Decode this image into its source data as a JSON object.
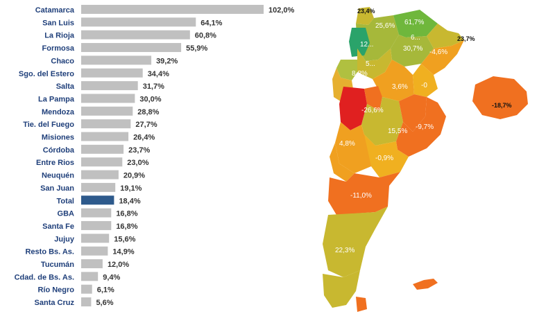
{
  "chart_data": [
    {
      "type": "bar",
      "orientation": "horizontal",
      "categories": [
        "Catamarca",
        "San Luis",
        "La Rioja",
        "Formosa",
        "Chaco",
        "Sgo. del Estero",
        "Salta",
        "La Pampa",
        "Mendoza",
        "Tie. del Fuego",
        "Misiones",
        "Córdoba",
        "Entre Rios",
        "Neuquén",
        "San Juan",
        "Total",
        "GBA",
        "Santa Fe",
        "Jujuy",
        "Resto Bs. As.",
        "Tucumán",
        "Cdad. de Bs. As.",
        "Río Negro",
        "Santa Cruz"
      ],
      "values": [
        102.0,
        64.1,
        60.8,
        55.9,
        39.2,
        34.4,
        31.7,
        30.0,
        28.8,
        27.7,
        26.4,
        23.7,
        23.0,
        20.9,
        19.1,
        18.4,
        16.8,
        16.8,
        15.6,
        14.9,
        12.0,
        9.4,
        6.1,
        5.6
      ],
      "value_labels": [
        "102,0%",
        "64,1%",
        "60,8%",
        "55,9%",
        "39,2%",
        "34,4%",
        "31,7%",
        "30,0%",
        "28,8%",
        "27,7%",
        "26,4%",
        "23,7%",
        "23,0%",
        "20,9%",
        "19,1%",
        "18,4%",
        "16,8%",
        "16,8%",
        "15,6%",
        "14,9%",
        "12,0%",
        "9,4%",
        "6,1%",
        "5,6%"
      ],
      "highlight_category": "Total",
      "colors": {
        "bar": "#c0c0c0",
        "highlight": "#2e5a8c",
        "category_text": "#1f3f7a"
      },
      "grid": false,
      "legend": "none"
    },
    {
      "type": "choropleth-map",
      "region_labels": [
        "23,4%",
        "25,6%",
        "61,7%",
        "23,7%",
        "12...",
        "6...",
        "30,7%",
        "-4,6%",
        "5...",
        "8,8%",
        "3,6%",
        "-0",
        "-26,6%",
        "-18,7%",
        "15,5%",
        "-9,7%",
        "4,8%",
        "-0,9%",
        "-11,0%",
        "22,3%"
      ],
      "colors": {
        "high": "#2aa36a",
        "mid_high": "#8cbf3a",
        "mid": "#c8b830",
        "low": "#f0a020",
        "lower": "#f07020",
        "lowest": "#e02020"
      }
    }
  ]
}
